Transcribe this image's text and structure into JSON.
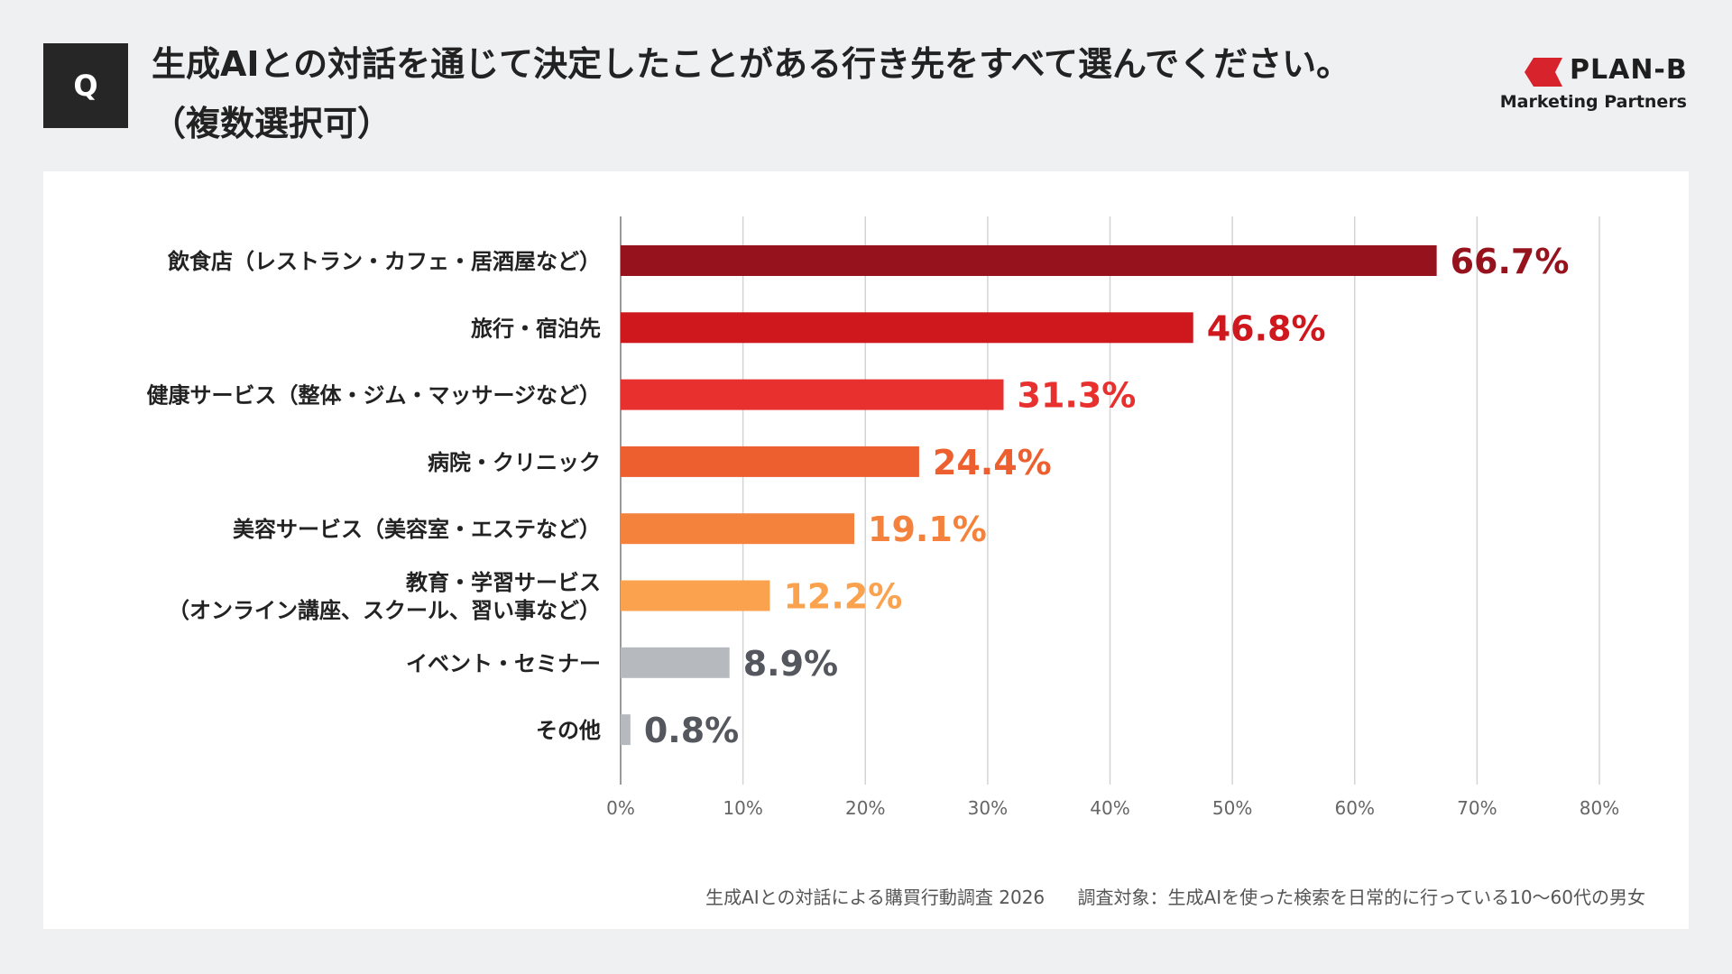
{
  "header": {
    "badge": "Q",
    "question_line1": "生成AIとの対話を通じて決定したことがある行き先をすべて選んでください。",
    "question_line2": "（複数選択可）"
  },
  "logo": {
    "name": "PLAN-B",
    "sub": "Marketing Partners",
    "color": "#d7232b"
  },
  "footnote": {
    "source": "生成AIとの対話による購買行動調査 2026",
    "target": "調査対象：生成AIを使った検索を日常的に行っている10〜60代の男女"
  },
  "chart_data": {
    "type": "bar",
    "orientation": "horizontal",
    "title": "",
    "xlabel": "",
    "ylabel": "",
    "xlim": [
      0,
      80
    ],
    "ticks": [
      0,
      10,
      20,
      30,
      40,
      50,
      60,
      70,
      80
    ],
    "tick_labels": [
      "0%",
      "10%",
      "20%",
      "30%",
      "40%",
      "50%",
      "60%",
      "70%",
      "80%"
    ],
    "grid": true,
    "legend": "none",
    "categories": [
      [
        "飲食店（レストラン・カフェ・居酒屋など）"
      ],
      [
        "旅行・宿泊先"
      ],
      [
        "健康サービス（整体・ジム・マッサージなど）"
      ],
      [
        "病院・クリニック"
      ],
      [
        "美容サービス（美容室・エステなど）"
      ],
      [
        "教育・学習サービス",
        "（オンライン講座、スクール、習い事など）"
      ],
      [
        "イベント・セミナー"
      ],
      [
        "その他"
      ]
    ],
    "values": [
      66.7,
      46.8,
      31.3,
      24.4,
      19.1,
      12.2,
      8.9,
      0.8
    ],
    "value_labels": [
      "66.7%",
      "46.8%",
      "31.3%",
      "24.4%",
      "19.1%",
      "12.2%",
      "8.9%",
      "0.8%"
    ],
    "bar_colors": [
      "#96131d",
      "#ce181e",
      "#e8312f",
      "#ed5f2f",
      "#f4823d",
      "#fba24f",
      "#b6b9be",
      "#b6b9be"
    ],
    "label_colors": [
      "#96131d",
      "#ce181e",
      "#e8312f",
      "#ed5f2f",
      "#f4823d",
      "#fba24f",
      "#54575d",
      "#54575d"
    ]
  }
}
